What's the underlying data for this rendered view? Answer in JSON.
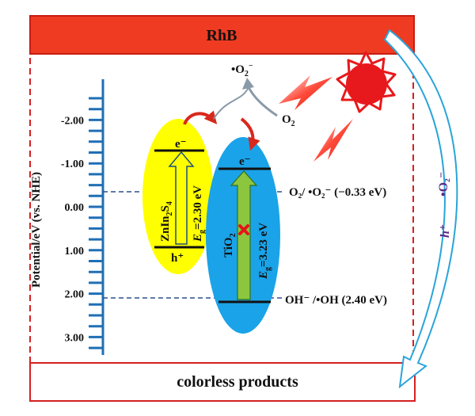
{
  "top_banner": {
    "label": "RhB",
    "color": "#ef3b22"
  },
  "bottom_box": {
    "label": "colorless products"
  },
  "axis": {
    "label": "Potential/eV (vs. NHE)",
    "ticks": [
      "-2.00",
      "-1.00",
      "0.00",
      "1.00",
      "2.00",
      "3.00"
    ],
    "color": "#1f6fb5"
  },
  "zninS": {
    "name_main": "ZnIn",
    "name_sub1": "2",
    "name_mid": "S",
    "name_sub2": "4",
    "electron": "e⁻",
    "hole": "h⁺",
    "eg_italic": "E",
    "eg_sub": "g",
    "eg_value": "=2.30 eV",
    "color": "#ffff00"
  },
  "tio2": {
    "name_main": "TiO",
    "name_sub": "2",
    "electron": "e⁻",
    "eg_italic": "E",
    "eg_sub": "g",
    "eg_value": "=3.23 eV",
    "color": "#1aa3e8"
  },
  "reactions": {
    "o2": "O",
    "o2_sub": "2",
    "superoxide": "•O",
    "superoxide_sub": "2",
    "superoxide_sup": "−",
    "level_top": "O₂/ •O₂⁻ (−0.33 eV)",
    "level_bottom": "OH⁻ /•OH (2.40 eV)"
  },
  "side_species": {
    "hole": "h⁺",
    "radical": "•O₂⁻"
  },
  "colors": {
    "frame": "#d62020",
    "arrow_outline": "#2aa4d9",
    "arrow_red": "#d9281c",
    "sun": "#e8191c"
  }
}
